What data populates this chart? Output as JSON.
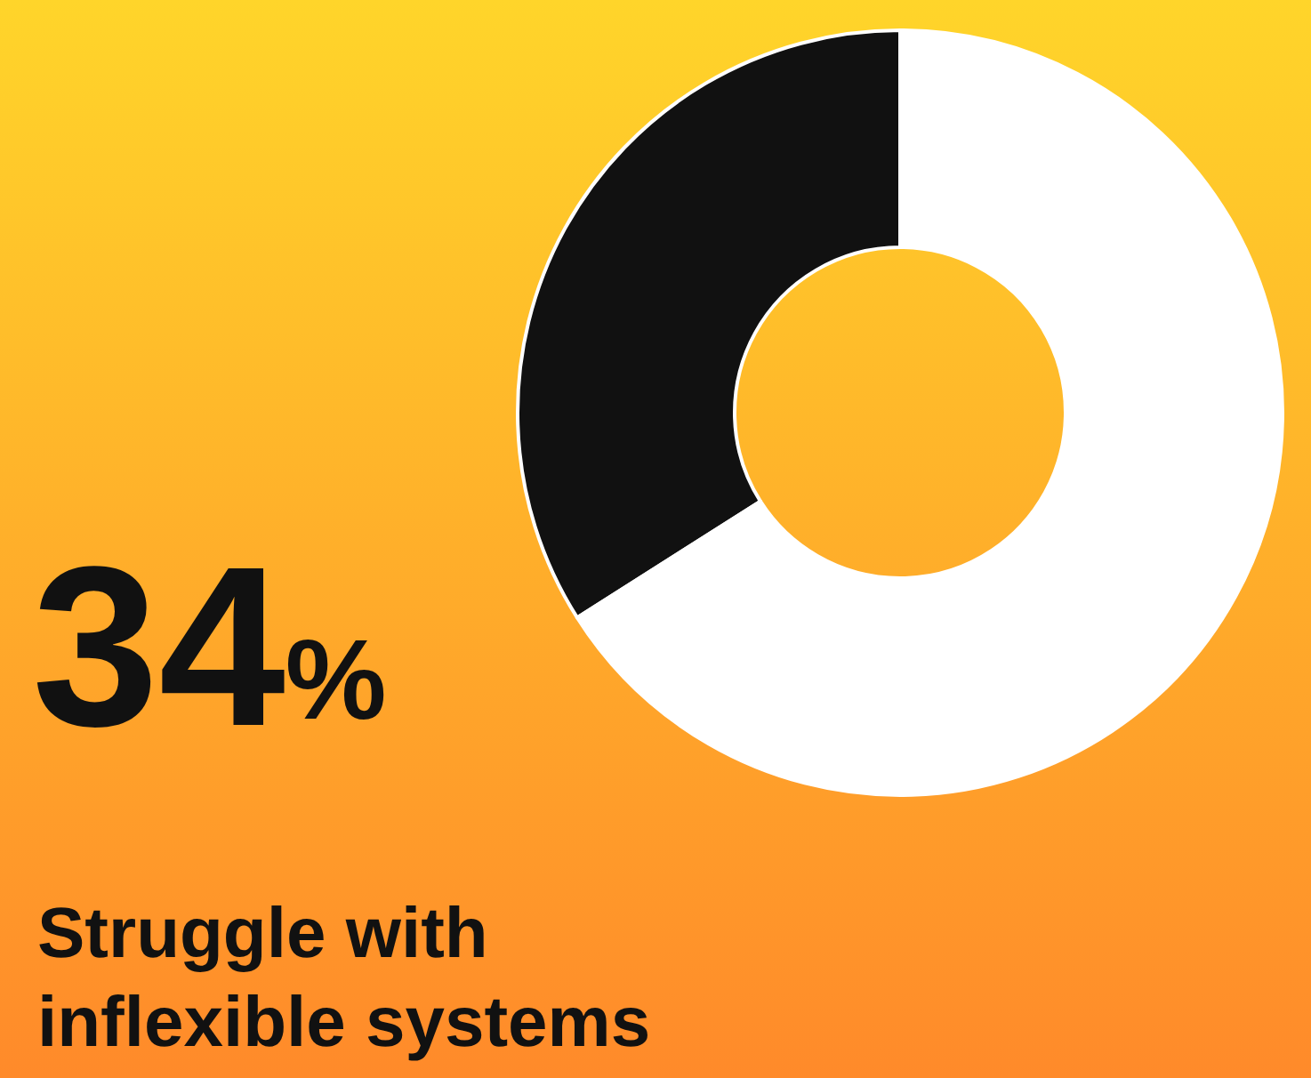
{
  "chart_data": {
    "type": "donut",
    "title": "Struggle with inflexible systems",
    "categories": [
      null,
      null
    ],
    "values": [
      34,
      66
    ],
    "colors": [
      "#111111",
      "#ffffff"
    ],
    "value_labels": [
      "34%",
      null
    ]
  }
}
